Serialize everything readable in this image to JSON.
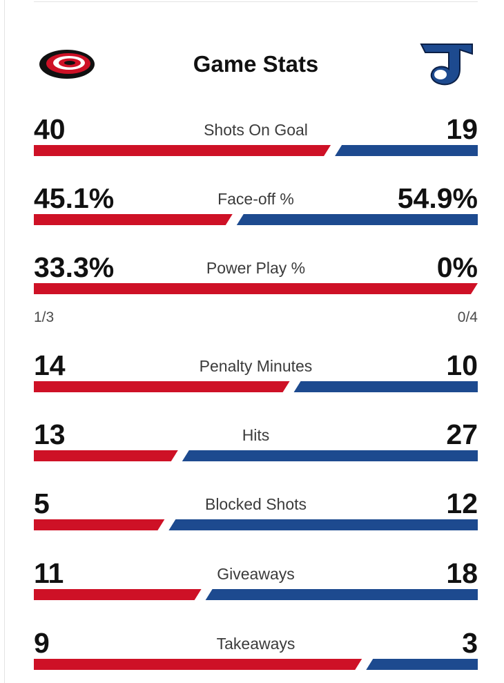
{
  "header": {
    "title": "Game Stats"
  },
  "teams": {
    "home": {
      "logo": "hurricanes-logo",
      "color": "#ce1126"
    },
    "away": {
      "logo": "blues-logo",
      "color": "#1d4a8f"
    }
  },
  "stats": [
    {
      "label": "Shots On Goal",
      "home": "40",
      "away": "19",
      "home_share": 0.678
    },
    {
      "label": "Face-off %",
      "home": "45.1%",
      "away": "54.9%",
      "home_share": 0.451
    },
    {
      "label": "Power Play %",
      "home": "33.3%",
      "away": "0%",
      "home_share": 1.0,
      "home_detail": "1/3",
      "away_detail": "0/4"
    },
    {
      "label": "Penalty Minutes",
      "home": "14",
      "away": "10",
      "home_share": 0.583
    },
    {
      "label": "Hits",
      "home": "13",
      "away": "27",
      "home_share": 0.325
    },
    {
      "label": "Blocked Shots",
      "home": "5",
      "away": "12",
      "home_share": 0.294
    },
    {
      "label": "Giveaways",
      "home": "11",
      "away": "18",
      "home_share": 0.379
    },
    {
      "label": "Takeaways",
      "home": "9",
      "away": "3",
      "home_share": 0.75
    }
  ]
}
